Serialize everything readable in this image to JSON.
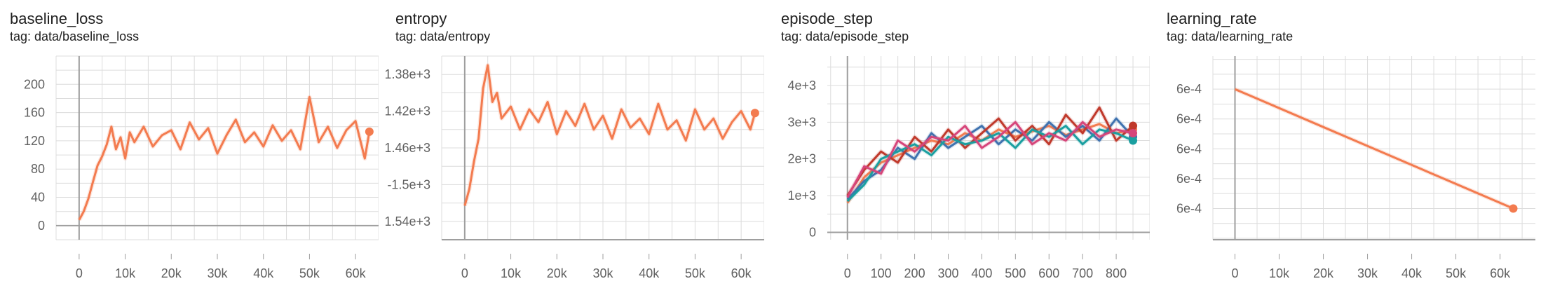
{
  "panels": [
    {
      "title": "baseline_loss",
      "tag": "tag: data/baseline_loss",
      "chart_data": {
        "type": "line",
        "x_ticks": [
          "0",
          "10k",
          "20k",
          "30k",
          "40k",
          "50k",
          "60k"
        ],
        "y_ticks": [
          "0",
          "40",
          "80",
          "120",
          "160",
          "200"
        ],
        "xlim": [
          -5000,
          65000
        ],
        "ylim": [
          -20,
          240
        ],
        "grid": true,
        "series_color": "#f37b4f",
        "series": [
          {
            "x": [
              0,
              1000,
              2000,
              3000,
              4000,
              5000,
              6000,
              7000,
              8000,
              9000,
              10000,
              11000,
              12000,
              14000,
              16000,
              18000,
              20000,
              22000,
              24000,
              26000,
              28000,
              30000,
              32000,
              34000,
              36000,
              38000,
              40000,
              42000,
              44000,
              46000,
              48000,
              50000,
              52000,
              54000,
              56000,
              58000,
              60000,
              62000,
              63000
            ],
            "y": [
              8,
              20,
              38,
              62,
              85,
              98,
              115,
              140,
              108,
              125,
              95,
              132,
              118,
              140,
              112,
              128,
              135,
              108,
              146,
              122,
              138,
              102,
              128,
              150,
              118,
              132,
              112,
              142,
              120,
              135,
              108,
              182,
              118,
              140,
              110,
              135,
              148,
              95,
              133
            ]
          }
        ]
      }
    },
    {
      "title": "entropy",
      "tag": "tag: data/entropy",
      "chart_data": {
        "type": "line",
        "x_ticks": [
          "0",
          "10k",
          "20k",
          "30k",
          "40k",
          "50k",
          "60k"
        ],
        "y_ticks": [
          "-1.54e+3",
          "-1.5e+3",
          "-1.46e+3",
          "-1.42e+3",
          "-1.38e+3"
        ],
        "xlim": [
          -5000,
          65000
        ],
        "ylim": [
          -1560,
          -1360
        ],
        "grid": true,
        "series_color": "#f37b4f",
        "series": [
          {
            "x": [
              0,
              1000,
              2000,
              3000,
              4000,
              5000,
              6000,
              7000,
              8000,
              10000,
              12000,
              14000,
              16000,
              18000,
              20000,
              22000,
              24000,
              26000,
              28000,
              30000,
              32000,
              34000,
              36000,
              38000,
              40000,
              42000,
              44000,
              46000,
              48000,
              50000,
              52000,
              54000,
              56000,
              58000,
              60000,
              62000,
              63000
            ],
            "y": [
              -1523,
              -1505,
              -1475,
              -1450,
              -1395,
              -1370,
              -1410,
              -1400,
              -1428,
              -1415,
              -1440,
              -1418,
              -1432,
              -1410,
              -1445,
              -1420,
              -1436,
              -1412,
              -1440,
              -1425,
              -1450,
              -1418,
              -1438,
              -1428,
              -1445,
              -1412,
              -1440,
              -1430,
              -1452,
              -1418,
              -1440,
              -1428,
              -1450,
              -1432,
              -1420,
              -1440,
              -1422
            ]
          }
        ]
      }
    },
    {
      "title": "episode_step",
      "tag": "tag: data/episode_step",
      "chart_data": {
        "type": "line",
        "x_ticks": [
          "0",
          "100",
          "200",
          "300",
          "400",
          "500",
          "600",
          "700",
          "800"
        ],
        "y_ticks": [
          "0",
          "1e+3",
          "2e+3",
          "3e+3",
          "4e+3"
        ],
        "xlim": [
          -60,
          900
        ],
        "ylim": [
          -200,
          4800
        ],
        "grid": true,
        "series": [
          {
            "color": "#f37b4f",
            "x": [
              0,
              50,
              100,
              150,
              200,
              250,
              300,
              350,
              400,
              450,
              500,
              550,
              600,
              650,
              700,
              750,
              800,
              850
            ],
            "y": [
              800,
              1500,
              1900,
              2100,
              2300,
              2500,
              2400,
              2700,
              2500,
              2800,
              2600,
              2750,
              2900,
              2650,
              2800,
              2950,
              2700,
              2800
            ]
          },
          {
            "color": "#3f72af",
            "x": [
              0,
              50,
              100,
              150,
              200,
              250,
              300,
              350,
              400,
              450,
              500,
              550,
              600,
              650,
              700,
              750,
              800,
              850
            ],
            "y": [
              900,
              1400,
              1700,
              2300,
              2000,
              2700,
              2300,
              2600,
              2900,
              2400,
              2800,
              2500,
              3000,
              2600,
              2900,
              2500,
              3100,
              2600
            ]
          },
          {
            "color": "#c0392b",
            "x": [
              0,
              50,
              100,
              150,
              200,
              250,
              300,
              350,
              400,
              450,
              500,
              550,
              600,
              650,
              700,
              750,
              800,
              850
            ],
            "y": [
              1000,
              1700,
              2200,
              1900,
              2600,
              2200,
              2800,
              2300,
              2700,
              3100,
              2500,
              2900,
              2400,
              3200,
              2700,
              3400,
              2500,
              2900
            ]
          },
          {
            "color": "#1a9fa0",
            "x": [
              0,
              50,
              100,
              150,
              200,
              250,
              300,
              350,
              400,
              450,
              500,
              550,
              600,
              650,
              700,
              750,
              800,
              850
            ],
            "y": [
              850,
              1300,
              2000,
              2200,
              2400,
              2100,
              2600,
              2400,
              2500,
              2700,
              2300,
              2800,
              2600,
              2900,
              2400,
              2800,
              2700,
              2500
            ]
          },
          {
            "color": "#d6457a",
            "x": [
              0,
              50,
              100,
              150,
              200,
              250,
              300,
              350,
              400,
              450,
              500,
              550,
              600,
              650,
              700,
              750,
              800,
              850
            ],
            "y": [
              950,
              1800,
              1600,
              2500,
              2200,
              2600,
              2500,
              2900,
              2300,
              2600,
              3000,
              2400,
              2700,
              2500,
              3000,
              2600,
              2800,
              2700
            ]
          }
        ]
      }
    },
    {
      "title": "learning_rate",
      "tag": "tag: data/learning_rate",
      "chart_data": {
        "type": "line",
        "x_ticks": [
          "0",
          "10k",
          "20k",
          "30k",
          "40k",
          "50k",
          "60k"
        ],
        "y_ticks": [
          "6e-4",
          "6e-4",
          "6e-4",
          "6e-4",
          "6e-4"
        ],
        "xlim": [
          -5000,
          68000
        ],
        "ylim": [
          0,
          1
        ],
        "grid": true,
        "series_color": "#f37b4f",
        "series": [
          {
            "x": [
              0,
              63000
            ],
            "y": [
              0.82,
              0.17
            ]
          }
        ]
      }
    }
  ]
}
